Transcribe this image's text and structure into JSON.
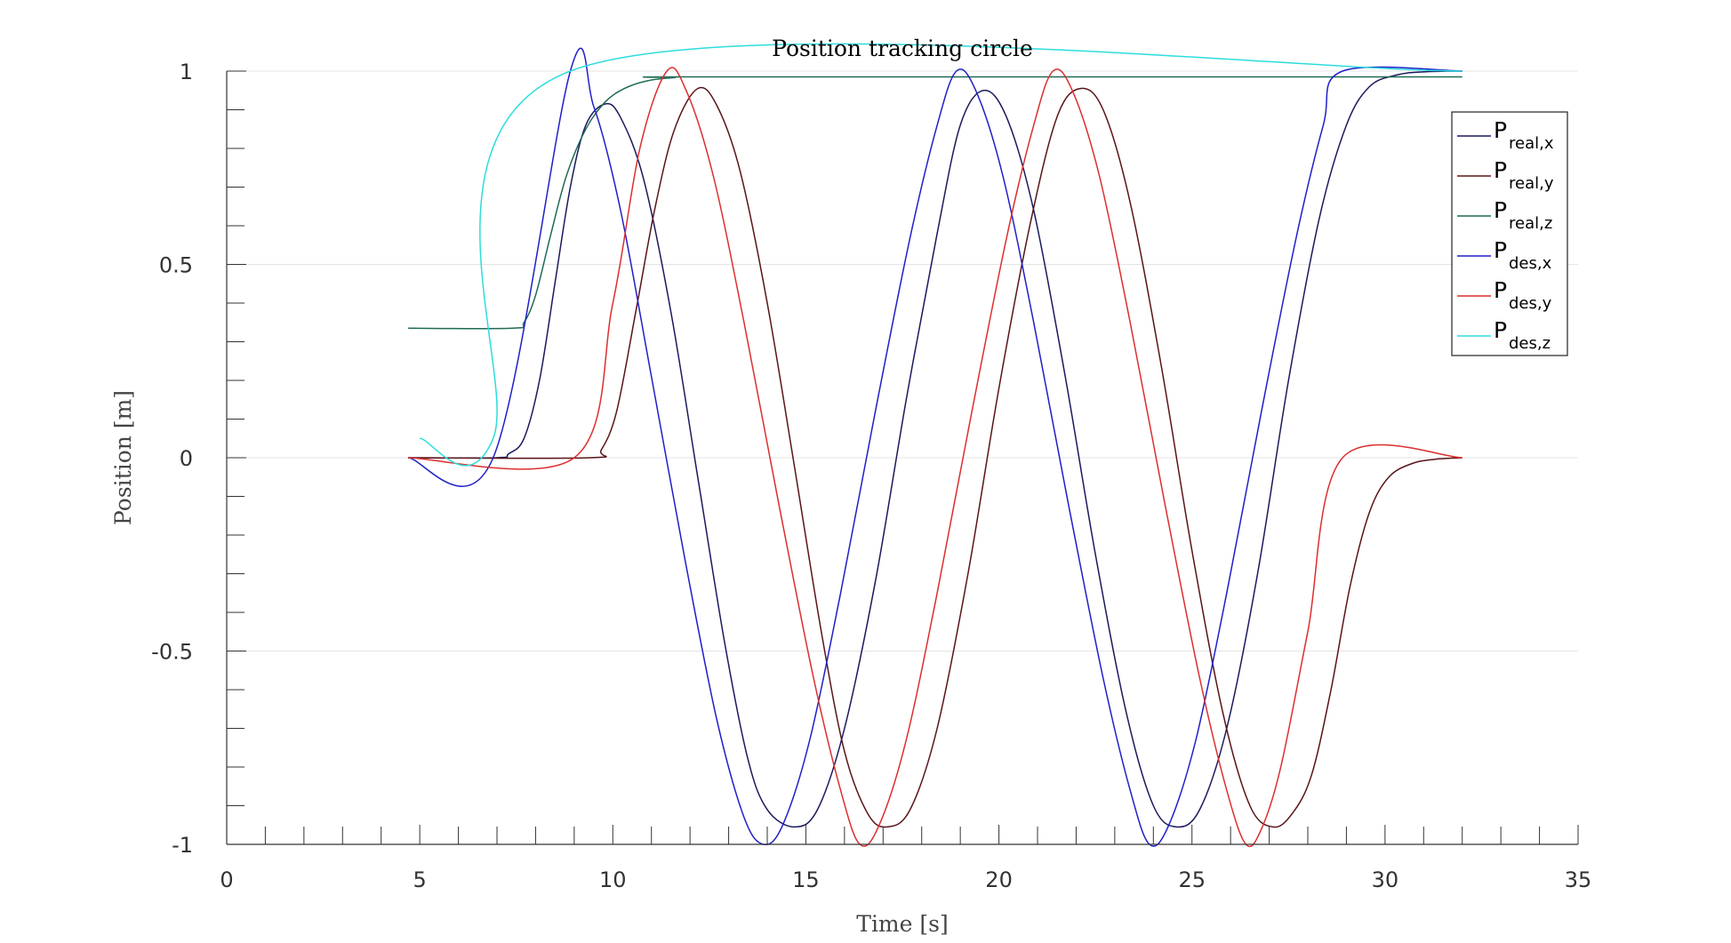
{
  "chart_data": {
    "type": "line",
    "title": "Position tracking circle",
    "xlabel": "Time [s]",
    "ylabel": "Position [m]",
    "xlim": [
      0,
      35
    ],
    "ylim": [
      -1,
      1
    ],
    "xticks": [
      0,
      5,
      10,
      15,
      20,
      25,
      30,
      35
    ],
    "yticks": [
      -1,
      -0.5,
      0,
      0.5,
      1
    ],
    "xtick_labels": [
      "0",
      "5",
      "10",
      "15",
      "20",
      "25",
      "30",
      "35"
    ],
    "ytick_labels": [
      "-1",
      "-0.5",
      "0",
      "0.5",
      "1"
    ],
    "grid": "horizontal",
    "legend_position": "top-right",
    "series": [
      {
        "name_main": "P",
        "name_sub": "real,x",
        "color": "#1a1a5e",
        "points": [
          [
            4.7,
            0
          ],
          [
            7.0,
            0
          ],
          [
            7.3,
            0.01
          ],
          [
            7.7,
            0.05
          ],
          [
            8.1,
            0.2
          ],
          [
            8.5,
            0.45
          ],
          [
            8.9,
            0.7
          ],
          [
            9.3,
            0.86
          ],
          [
            9.8,
            0.915
          ],
          [
            10.2,
            0.88
          ],
          [
            10.8,
            0.72
          ],
          [
            11.5,
            0.38
          ],
          [
            12.2,
            -0.05
          ],
          [
            12.9,
            -0.48
          ],
          [
            13.5,
            -0.78
          ],
          [
            14.0,
            -0.91
          ],
          [
            14.7,
            -0.955
          ],
          [
            15.3,
            -0.91
          ],
          [
            16.0,
            -0.7
          ],
          [
            16.8,
            -0.32
          ],
          [
            17.6,
            0.15
          ],
          [
            18.4,
            0.58
          ],
          [
            19.0,
            0.86
          ],
          [
            19.6,
            0.95
          ],
          [
            20.2,
            0.88
          ],
          [
            20.9,
            0.64
          ],
          [
            21.7,
            0.22
          ],
          [
            22.5,
            -0.25
          ],
          [
            23.3,
            -0.66
          ],
          [
            24.0,
            -0.9
          ],
          [
            24.6,
            -0.955
          ],
          [
            25.2,
            -0.91
          ],
          [
            25.9,
            -0.7
          ],
          [
            26.7,
            -0.3
          ],
          [
            27.5,
            0.2
          ],
          [
            28.3,
            0.62
          ],
          [
            29.0,
            0.86
          ],
          [
            29.6,
            0.96
          ],
          [
            30.3,
            0.99
          ],
          [
            31.0,
            0.998
          ],
          [
            32.0,
            1.0
          ]
        ]
      },
      {
        "name_main": "P",
        "name_sub": "real,y",
        "color": "#5a1418",
        "points": [
          [
            4.7,
            0
          ],
          [
            9.4,
            0
          ],
          [
            9.7,
            0.02
          ],
          [
            10.1,
            0.12
          ],
          [
            10.6,
            0.38
          ],
          [
            11.1,
            0.65
          ],
          [
            11.6,
            0.85
          ],
          [
            12.2,
            0.955
          ],
          [
            12.7,
            0.91
          ],
          [
            13.3,
            0.74
          ],
          [
            14.0,
            0.4
          ],
          [
            14.7,
            -0.02
          ],
          [
            15.4,
            -0.45
          ],
          [
            16.0,
            -0.76
          ],
          [
            16.6,
            -0.92
          ],
          [
            17.1,
            -0.955
          ],
          [
            17.7,
            -0.91
          ],
          [
            18.4,
            -0.7
          ],
          [
            19.2,
            -0.3
          ],
          [
            20.0,
            0.18
          ],
          [
            20.8,
            0.6
          ],
          [
            21.5,
            0.88
          ],
          [
            22.1,
            0.955
          ],
          [
            22.7,
            0.9
          ],
          [
            23.4,
            0.66
          ],
          [
            24.2,
            0.24
          ],
          [
            25.0,
            -0.24
          ],
          [
            25.8,
            -0.66
          ],
          [
            26.5,
            -0.9
          ],
          [
            27.1,
            -0.955
          ],
          [
            27.6,
            -0.92
          ],
          [
            28.1,
            -0.82
          ],
          [
            28.6,
            -0.6
          ],
          [
            29.1,
            -0.33
          ],
          [
            29.6,
            -0.14
          ],
          [
            30.1,
            -0.05
          ],
          [
            30.7,
            -0.015
          ],
          [
            31.3,
            -0.004
          ],
          [
            32.0,
            0
          ]
        ]
      },
      {
        "name_main": "P",
        "name_sub": "real,z",
        "color": "#1f6b55",
        "points": [
          [
            4.7,
            0.335
          ],
          [
            7.4,
            0.335
          ],
          [
            7.7,
            0.35
          ],
          [
            8.0,
            0.42
          ],
          [
            8.4,
            0.58
          ],
          [
            8.8,
            0.73
          ],
          [
            9.3,
            0.85
          ],
          [
            9.8,
            0.92
          ],
          [
            10.3,
            0.955
          ],
          [
            10.9,
            0.975
          ],
          [
            11.6,
            0.983
          ],
          [
            12.5,
            0.985
          ],
          [
            32.0,
            0.985
          ]
        ]
      },
      {
        "name_main": "P",
        "name_sub": "des,x",
        "color": "#1f1fc8",
        "points": [
          [
            4.7,
            0
          ],
          [
            6.9,
            0
          ],
          [
            8.9,
            1.0
          ],
          [
            9.5,
            0.91
          ],
          [
            10.2,
            0.64
          ],
          [
            11.0,
            0.21
          ],
          [
            11.9,
            -0.28
          ],
          [
            12.7,
            -0.68
          ],
          [
            13.4,
            -0.93
          ],
          [
            13.9,
            -1.0
          ],
          [
            14.4,
            -0.95
          ],
          [
            15.1,
            -0.73
          ],
          [
            15.9,
            -0.35
          ],
          [
            16.8,
            0.12
          ],
          [
            17.7,
            0.57
          ],
          [
            18.4,
            0.86
          ],
          [
            18.9,
            1.0
          ],
          [
            19.4,
            0.95
          ],
          [
            20.1,
            0.73
          ],
          [
            20.9,
            0.35
          ],
          [
            21.8,
            -0.12
          ],
          [
            22.7,
            -0.57
          ],
          [
            23.4,
            -0.86
          ],
          [
            23.9,
            -1.0
          ],
          [
            24.4,
            -0.95
          ],
          [
            25.1,
            -0.73
          ],
          [
            25.9,
            -0.35
          ],
          [
            26.8,
            0.12
          ],
          [
            27.7,
            0.57
          ],
          [
            28.4,
            0.86
          ],
          [
            28.9,
            1.0
          ],
          [
            32.0,
            1.0
          ]
        ]
      },
      {
        "name_main": "P",
        "name_sub": "des,y",
        "color": "#dc2e2e",
        "points": [
          [
            4.7,
            0
          ],
          [
            9.0,
            0
          ],
          [
            10.0,
            0.4
          ],
          [
            10.7,
            0.8
          ],
          [
            11.4,
            1.0
          ],
          [
            11.9,
            0.95
          ],
          [
            12.6,
            0.73
          ],
          [
            13.4,
            0.35
          ],
          [
            14.3,
            -0.12
          ],
          [
            15.2,
            -0.57
          ],
          [
            15.9,
            -0.86
          ],
          [
            16.4,
            -1.0
          ],
          [
            16.9,
            -0.95
          ],
          [
            17.6,
            -0.73
          ],
          [
            18.4,
            -0.35
          ],
          [
            19.3,
            0.12
          ],
          [
            20.2,
            0.57
          ],
          [
            20.9,
            0.86
          ],
          [
            21.4,
            1.0
          ],
          [
            21.9,
            0.95
          ],
          [
            22.6,
            0.73
          ],
          [
            23.4,
            0.35
          ],
          [
            24.3,
            -0.12
          ],
          [
            25.2,
            -0.57
          ],
          [
            25.9,
            -0.86
          ],
          [
            26.4,
            -1.0
          ],
          [
            26.8,
            -0.96
          ],
          [
            27.3,
            -0.8
          ],
          [
            28.0,
            -0.45
          ],
          [
            28.9,
            0
          ],
          [
            32.0,
            0
          ]
        ]
      },
      {
        "name_main": "P",
        "name_sub": "des,z",
        "color": "#2edcdc",
        "points": [
          [
            5.0,
            0.05
          ],
          [
            6.9,
            0.05
          ],
          [
            8.9,
            1.0
          ],
          [
            32.0,
            1.0
          ]
        ]
      }
    ]
  }
}
